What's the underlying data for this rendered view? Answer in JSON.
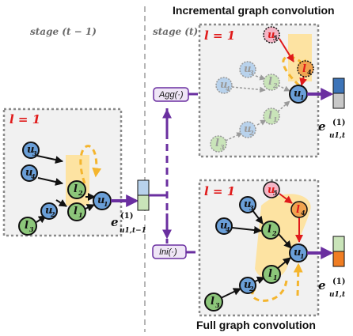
{
  "labels": {
    "stage_prev": "stage (t − 1)",
    "stage_cur": "stage (t)",
    "incremental_title": "Incremental graph convolution",
    "full_title": "Full graph convolution",
    "layer": "l = 1",
    "agg": "Agg(·)",
    "ini": "Ini(·)"
  },
  "embeddings": {
    "prev": {
      "base": "e",
      "sup": "(1)",
      "sub": "u1,t−1"
    },
    "inc": {
      "base": "e",
      "sup": "(1)",
      "sub": "u1,t"
    },
    "full": {
      "base": "e",
      "sup": "(1)",
      "sub": "u1,t"
    }
  },
  "node_labels": {
    "u1": {
      "letter": "u",
      "sub": "1"
    },
    "u2": {
      "letter": "u",
      "sub": "2"
    },
    "u3": {
      "letter": "u",
      "sub": "3"
    },
    "u4": {
      "letter": "u",
      "sub": "4"
    },
    "u5": {
      "letter": "u",
      "sub": "5"
    },
    "l1": {
      "letter": "l",
      "sub": "1"
    },
    "l2": {
      "letter": "l",
      "sub": "2"
    },
    "l3": {
      "letter": "l",
      "sub": "3"
    },
    "l4": {
      "letter": "l",
      "sub": "4"
    }
  },
  "colors": {
    "user_node": "#6a9fd8",
    "item_node": "#8cc67a",
    "new_user_node": "#f4b6c6",
    "new_item_node": "#f0a34e",
    "arrow_purple": "#6a2fa0",
    "loop_yellow": "#f4b52e",
    "highlight": "#fde3a2",
    "panel_bg": "#f1f1f1",
    "new_edge": "#e01a1a"
  }
}
